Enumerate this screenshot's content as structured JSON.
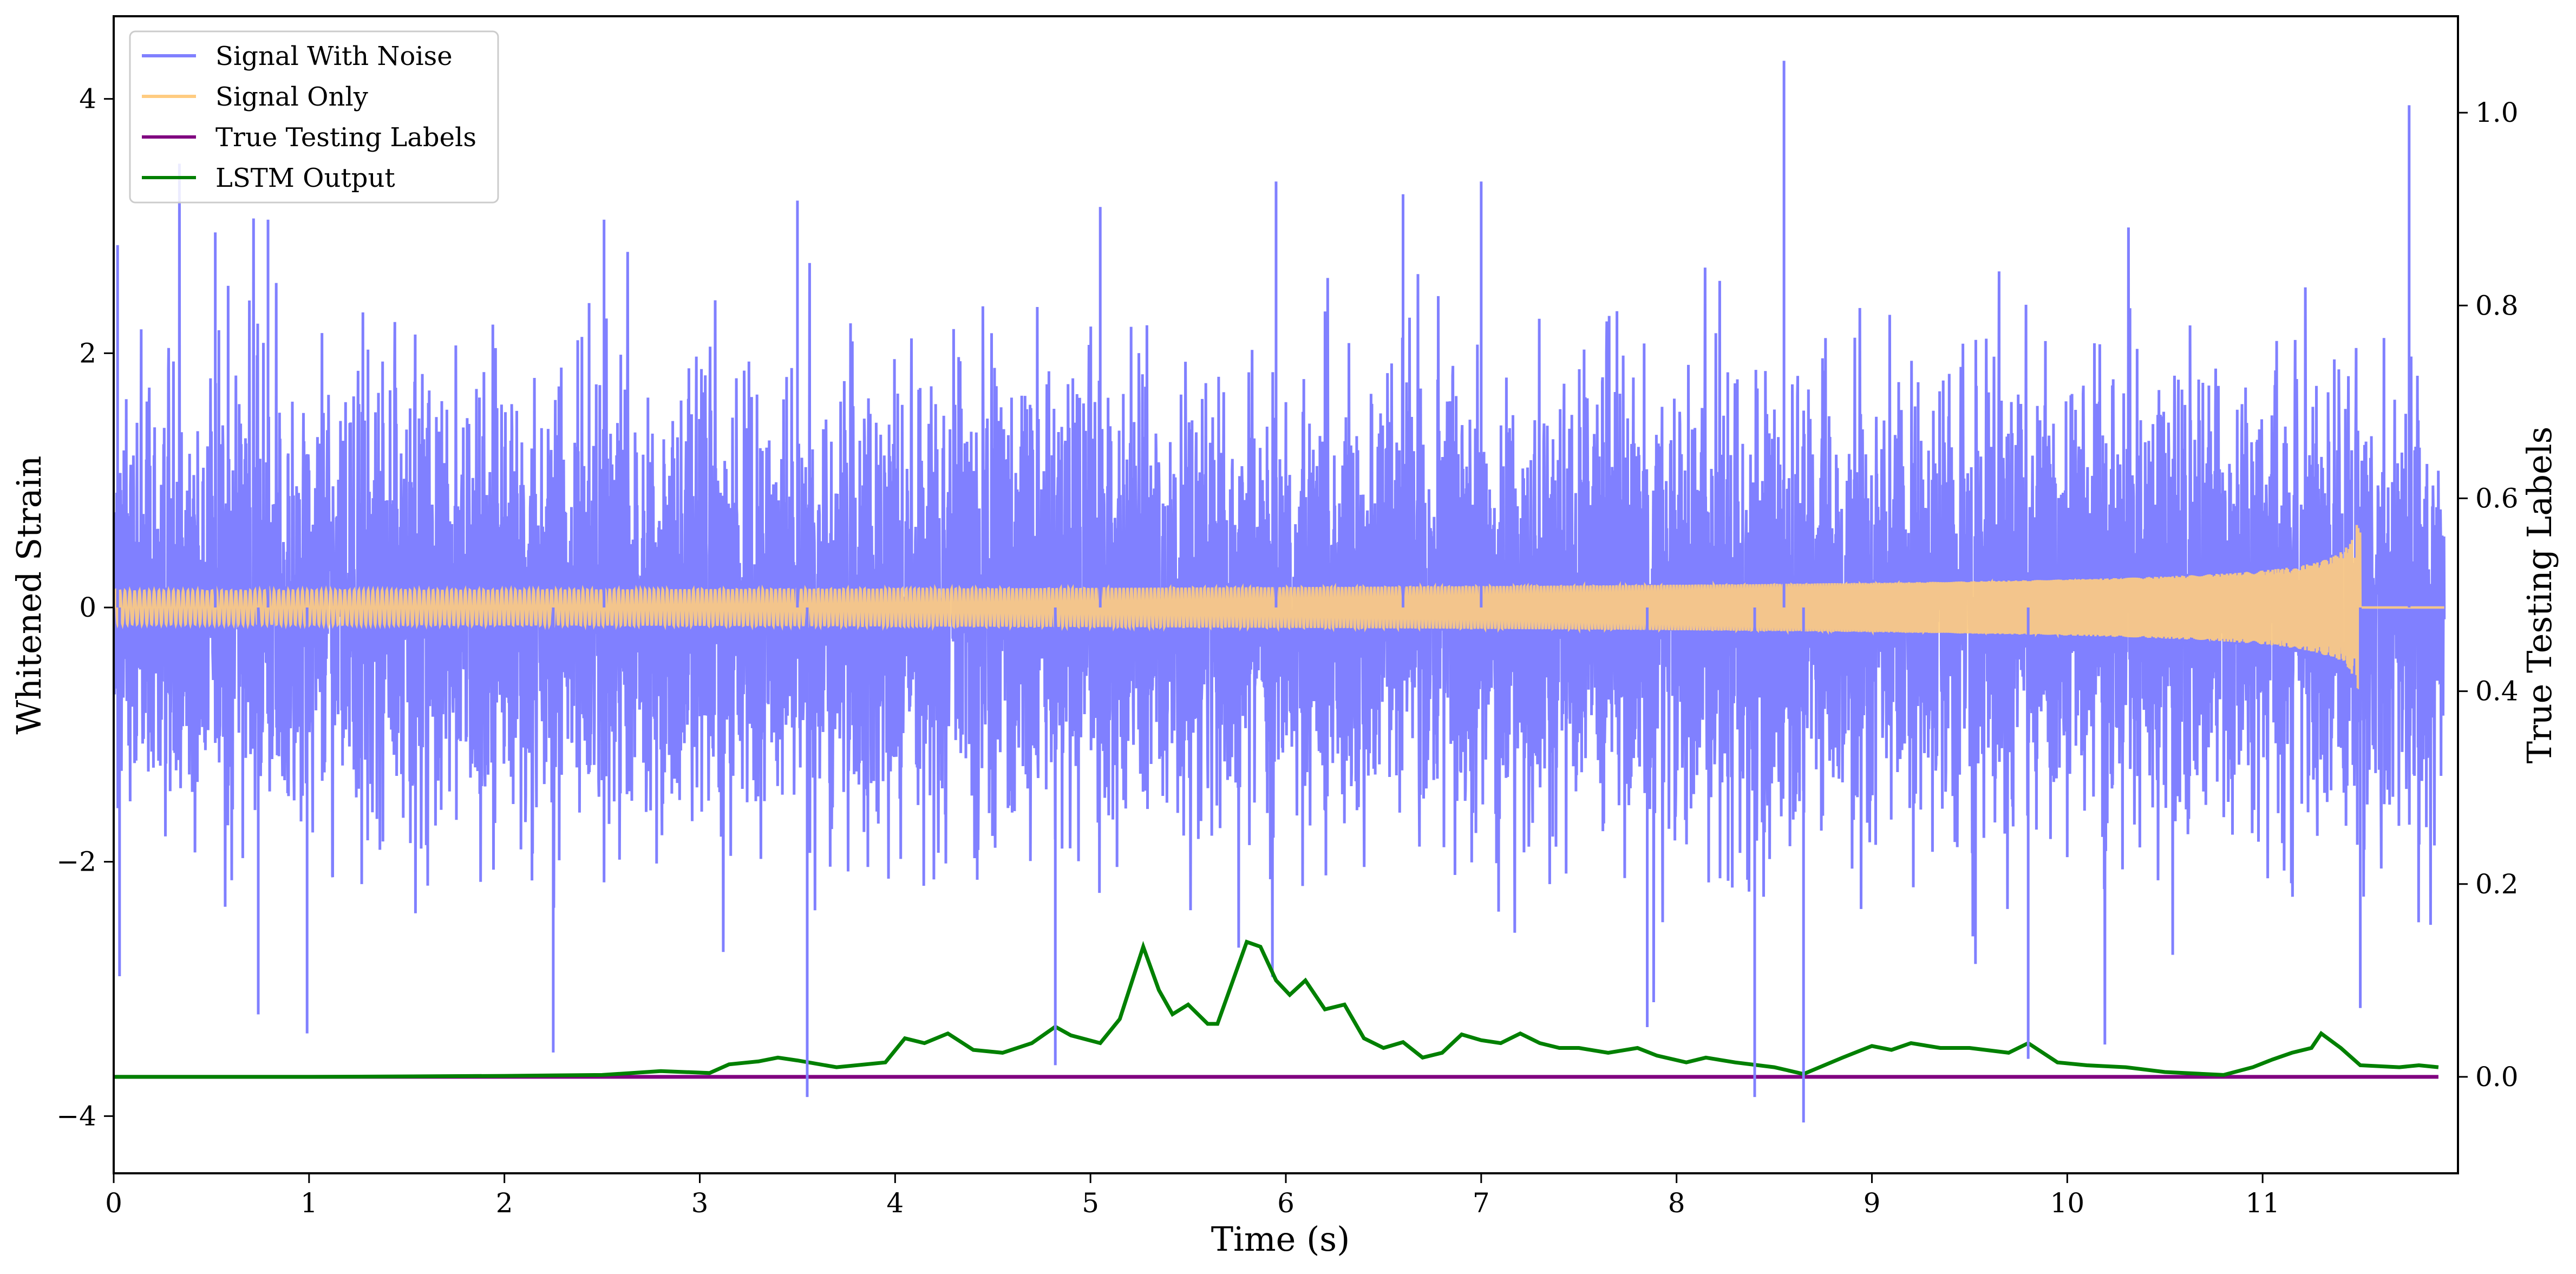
{
  "chart_data": {
    "type": "line",
    "xlabel": "Time (s)",
    "ylabel_left": "Whitened Strain",
    "ylabel_right": "True Testing Labels",
    "xlim": [
      0,
      12
    ],
    "ylim_left": [
      -4.45,
      4.65
    ],
    "ylim_right": [
      -0.1,
      1.1
    ],
    "x_ticks": [
      0,
      1,
      2,
      3,
      4,
      5,
      6,
      7,
      8,
      9,
      10,
      11
    ],
    "y_ticks_left": [
      -4,
      -2,
      0,
      2,
      4
    ],
    "y_ticks_right": [
      0.0,
      0.2,
      0.4,
      0.6,
      0.8,
      1.0
    ],
    "y_tick_labels_left": [
      "−4",
      "−2",
      "0",
      "2",
      "4"
    ],
    "y_tick_labels_right": [
      "0.0",
      "0.2",
      "0.4",
      "0.6",
      "0.8",
      "1.0"
    ],
    "grid": false,
    "legend_position": "upper-left",
    "series": [
      {
        "name": "Signal With Noise",
        "axis": "left",
        "color": "#8080ff",
        "noise_std": 0.85,
        "spikes": [
          [
            0.02,
            2.85
          ],
          [
            0.03,
            -2.9
          ],
          [
            0.52,
            2.95
          ],
          [
            0.74,
            -3.2
          ],
          [
            0.79,
            3.05
          ],
          [
            0.99,
            -3.35
          ],
          [
            2.25,
            -3.5
          ],
          [
            2.51,
            3.05
          ],
          [
            3.55,
            -3.85
          ],
          [
            3.5,
            3.2
          ],
          [
            4.82,
            -3.6
          ],
          [
            5.05,
            3.15
          ],
          [
            5.95,
            3.35
          ],
          [
            6.6,
            3.25
          ],
          [
            7.0,
            3.35
          ],
          [
            7.85,
            -3.3
          ],
          [
            8.4,
            -3.85
          ],
          [
            8.55,
            4.3
          ],
          [
            8.65,
            -4.05
          ],
          [
            9.8,
            -3.55
          ],
          [
            11.5,
            -3.15
          ],
          [
            11.75,
            3.95
          ]
        ]
      },
      {
        "name": "Signal Only",
        "axis": "left",
        "color": "#ffcc80",
        "merger_time": 11.5,
        "peak_amplitude": 0.65
      },
      {
        "name": "True Testing Labels",
        "axis": "right",
        "color": "#800080",
        "x": [
          0,
          11.9
        ],
        "values": [
          0.0,
          0.0
        ]
      },
      {
        "name": "LSTM Output",
        "axis": "right",
        "color": "#008000",
        "x": [
          0,
          1,
          2,
          2.5,
          2.8,
          3.05,
          3.15,
          3.3,
          3.4,
          3.5,
          3.7,
          3.95,
          4.05,
          4.15,
          4.27,
          4.4,
          4.55,
          4.7,
          4.82,
          4.9,
          5.05,
          5.15,
          5.27,
          5.35,
          5.42,
          5.5,
          5.6,
          5.65,
          5.8,
          5.87,
          5.95,
          6.02,
          6.1,
          6.2,
          6.3,
          6.4,
          6.5,
          6.6,
          6.7,
          6.8,
          6.9,
          7.0,
          7.1,
          7.2,
          7.3,
          7.4,
          7.5,
          7.65,
          7.8,
          7.9,
          8.05,
          8.15,
          8.3,
          8.5,
          8.65,
          8.85,
          9.0,
          9.1,
          9.2,
          9.35,
          9.5,
          9.7,
          9.8,
          9.95,
          10.1,
          10.3,
          10.5,
          10.8,
          10.95,
          11.05,
          11.15,
          11.25,
          11.3,
          11.4,
          11.5,
          11.7,
          11.8,
          11.9
        ],
        "values": [
          0.0,
          0.0,
          0.001,
          0.002,
          0.006,
          0.004,
          0.013,
          0.016,
          0.02,
          0.017,
          0.01,
          0.015,
          0.04,
          0.035,
          0.045,
          0.028,
          0.025,
          0.035,
          0.052,
          0.043,
          0.035,
          0.06,
          0.135,
          0.09,
          0.065,
          0.075,
          0.055,
          0.055,
          0.14,
          0.135,
          0.1,
          0.085,
          0.1,
          0.07,
          0.075,
          0.04,
          0.03,
          0.036,
          0.02,
          0.025,
          0.044,
          0.038,
          0.035,
          0.045,
          0.035,
          0.03,
          0.03,
          0.025,
          0.03,
          0.022,
          0.015,
          0.02,
          0.015,
          0.01,
          0.003,
          0.02,
          0.032,
          0.028,
          0.035,
          0.03,
          0.03,
          0.025,
          0.035,
          0.015,
          0.012,
          0.01,
          0.005,
          0.002,
          0.01,
          0.018,
          0.025,
          0.03,
          0.045,
          0.03,
          0.012,
          0.01,
          0.012,
          0.01
        ]
      }
    ]
  }
}
